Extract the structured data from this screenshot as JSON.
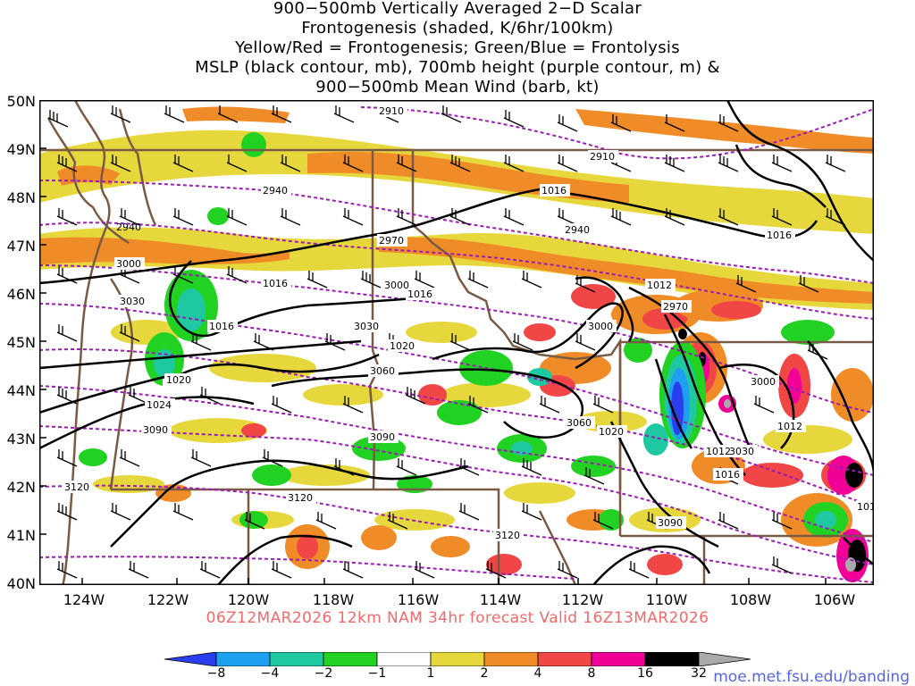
{
  "title": {
    "line1": "900−500mb Vertically Averaged 2−D Scalar",
    "line2": "Frontogenesis (shaded, K/6hr/100km)",
    "line3": "Yellow/Red = Frontogenesis;  Green/Blue = Frontolysis",
    "line4": "MSLP (black contour, mb), 700mb height (purple contour, m) &",
    "line5": "900−500mb Mean Wind (barb, kt)"
  },
  "lat_labels": [
    "50N",
    "49N",
    "48N",
    "47N",
    "46N",
    "45N",
    "44N",
    "43N",
    "42N",
    "41N",
    "40N"
  ],
  "lon_labels": [
    "124W",
    "122W",
    "120W",
    "118W",
    "116W",
    "114W",
    "112W",
    "110W",
    "108W",
    "106W"
  ],
  "run_info": "06Z12MAR2026 12km NAM 34hr forecast Valid 16Z13MAR2026",
  "colorbar": {
    "labels": [
      "−8",
      "−4",
      "−2",
      "−1",
      "1",
      "2",
      "4",
      "8",
      "16",
      "32"
    ],
    "colors": [
      "#2a3ef0",
      "#1ea0f0",
      "#1ec8a0",
      "#22d222",
      "#ffffff",
      "#e6d83c",
      "#f08c28",
      "#f04646",
      "#f00096",
      "#000000",
      "#aaaaaa"
    ]
  },
  "height_contour_labels": [
    "2910",
    "2910",
    "2940",
    "2940",
    "2940",
    "2970",
    "2970",
    "3000",
    "3000",
    "3000",
    "3000",
    "3030",
    "3030",
    "3030",
    "3060",
    "3060",
    "3090",
    "3090",
    "3090",
    "3120",
    "3120",
    "3120"
  ],
  "pressure_contour_labels": [
    "1016",
    "1016",
    "1016",
    "1016",
    "1016",
    "1016",
    "1012",
    "1012",
    "1020",
    "1020",
    "1020",
    "1024",
    "1012",
    "101"
  ],
  "credit": "moe.met.fsu.edu/banding"
}
